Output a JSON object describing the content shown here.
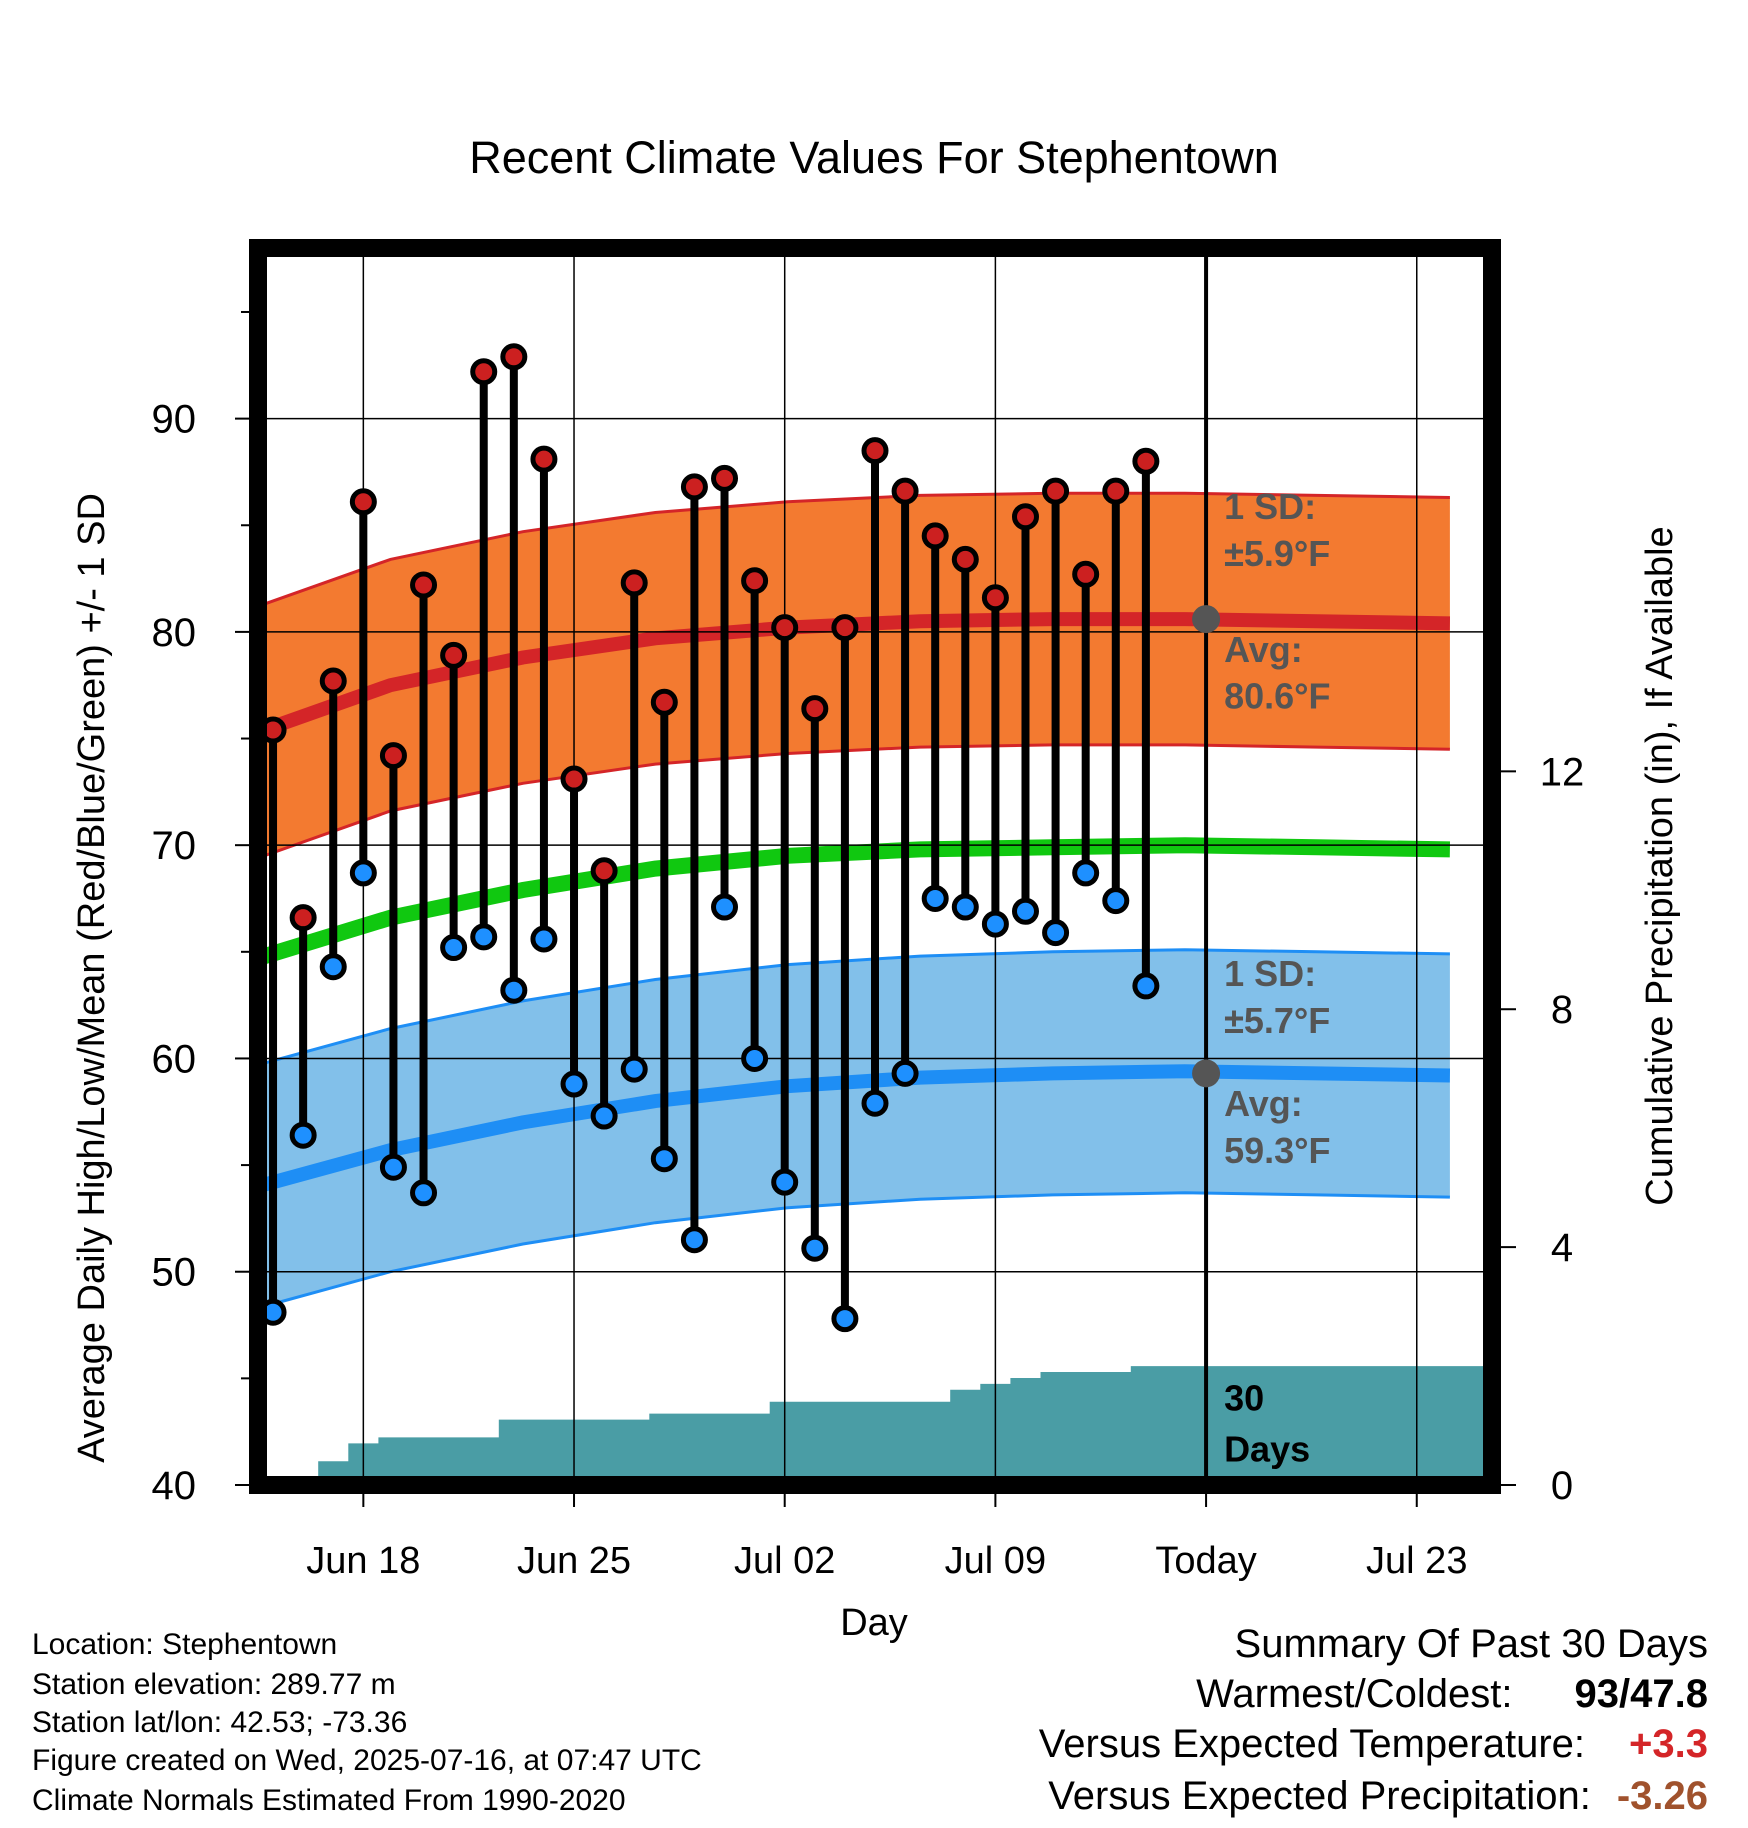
{
  "chart_data": {
    "type": "line",
    "title": "Recent Climate Values For Stephentown",
    "xlabel": "Day",
    "ylabel": "Average Daily High/Low/Mean (Red/Blue/Green) +/- 1 SD",
    "y2label": "Cumulative Precipitation (in), If Available",
    "ylim": [
      40,
      98
    ],
    "y2lim": [
      0,
      20.8
    ],
    "yticks": [
      "40",
      "50",
      "60",
      "70",
      "80",
      "90"
    ],
    "y2ticks": [
      "0",
      "4",
      "8",
      "12"
    ],
    "xticks": [
      {
        "day": 3.5,
        "label": "Jun 18"
      },
      {
        "day": 10.5,
        "label": "Jun 25"
      },
      {
        "day": 17.5,
        "label": "Jul 02"
      },
      {
        "day": 24.5,
        "label": "Jul 09"
      },
      {
        "day": 31.5,
        "label": "Today"
      },
      {
        "day": 38.5,
        "label": "Jul 23"
      }
    ],
    "xlim": [
      0,
      41
    ],
    "grid": true,
    "highs": [
      75.4,
      66.6,
      77.7,
      86.1,
      74.2,
      82.2,
      78.9,
      92.2,
      92.9,
      88.1,
      73.1,
      68.8,
      82.3,
      76.7,
      86.8,
      87.2,
      82.4,
      80.2,
      76.4,
      80.2,
      88.5,
      86.6,
      84.5,
      83.4,
      81.6,
      85.4,
      86.6,
      82.7,
      86.6,
      88.0
    ],
    "lows": [
      48.1,
      56.4,
      64.3,
      68.7,
      54.9,
      53.7,
      65.2,
      65.7,
      63.2,
      65.6,
      58.8,
      57.3,
      59.5,
      55.3,
      51.5,
      67.1,
      60.0,
      54.2,
      51.1,
      47.8,
      57.9,
      59.3,
      67.5,
      67.1,
      66.3,
      66.9,
      65.9,
      68.7,
      67.4,
      63.4
    ],
    "normals": {
      "high_avg": [
        75.3,
        77.5,
        78.8,
        79.7,
        80.2,
        80.5,
        80.6,
        80.6,
        80.5,
        80.4
      ],
      "high_sd": 5.9,
      "low_avg": [
        54.0,
        55.7,
        57.0,
        58.0,
        58.7,
        59.1,
        59.3,
        59.4,
        59.3,
        59.2
      ],
      "low_sd": 5.7,
      "mean_avg": [
        64.7,
        66.6,
        67.9,
        68.9,
        69.5,
        69.8,
        69.9,
        70.0,
        69.9,
        69.8
      ],
      "day_step": 4.4
    },
    "precip_cumulative": [
      0,
      0,
      0.4,
      0.7,
      0.8,
      0.8,
      0.8,
      0.8,
      1.1,
      1.1,
      1.1,
      1.1,
      1.1,
      1.2,
      1.2,
      1.2,
      1.2,
      1.4,
      1.4,
      1.4,
      1.4,
      1.4,
      1.4,
      1.6,
      1.7,
      1.8,
      1.9,
      1.9,
      1.9,
      2.0,
      2.0,
      2.0
    ],
    "today_day": 31.5,
    "annotations": {
      "high_sd_line1": "1 SD:",
      "high_sd_line2": "±5.9°F",
      "high_avg_line1": "Avg:",
      "high_avg_line2": "80.6°F",
      "low_sd_line1": "1 SD:",
      "low_sd_line2": "±5.7°F",
      "low_avg_line1": "Avg:",
      "low_avg_line2": "59.3°F",
      "days_line1": "30",
      "days_line2": "Days"
    },
    "today_high_avg": 80.6,
    "today_low_avg": 59.3,
    "colors": {
      "high_band": "#f37a30",
      "high_line": "#d42528",
      "low_band": "#82c0ea",
      "low_line": "#1e8ef5",
      "mean_line": "#10c810",
      "precip": "#4a9da5",
      "high_marker": "#cc2020",
      "low_marker": "#1e90ff",
      "annotation": "#555555"
    }
  },
  "location": {
    "line1": "Location: Stephentown",
    "line2": "Station elevation: 289.77 m",
    "line3": "Station lat/lon: 42.53; -73.36",
    "line4": "Figure created on Wed, 2025-07-16, at 07:47 UTC",
    "line5": "Climate Normals Estimated From 1990-2020"
  },
  "summary": {
    "heading": "Summary Of Past 30 Days",
    "warmest_label": "Warmest/Coldest:",
    "warmest_value": "93",
    "coldest_value": "47.8",
    "separator": "/",
    "temp_label": "Versus Expected Temperature:",
    "temp_value": "+3.3",
    "temp_color": "#d42528",
    "precip_label": "Versus Expected Precipitation:",
    "precip_value": "-3.26",
    "precip_color": "#a0522d"
  }
}
